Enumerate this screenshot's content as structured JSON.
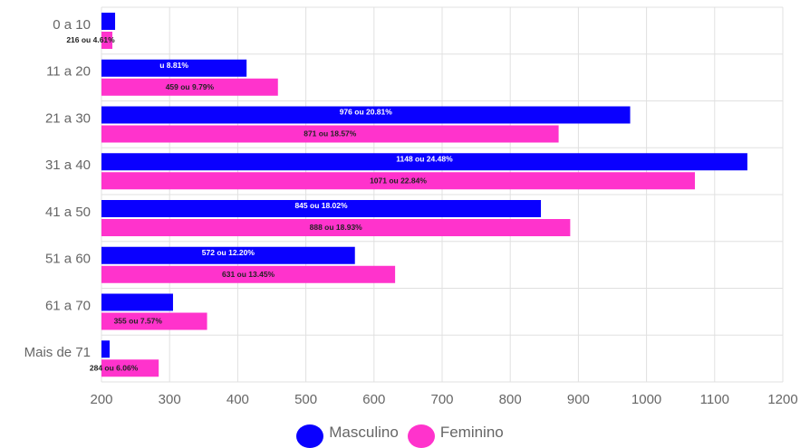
{
  "chart_data": {
    "type": "bar",
    "orientation": "horizontal",
    "categories": [
      "0 a 10",
      "11 a 20",
      "21 a 30",
      "31 a 40",
      "41 a 50",
      "51 a 60",
      "61 a 70",
      "Mais de 71"
    ],
    "series": [
      {
        "name": "Masculino",
        "color": "#0a00ff",
        "values": [
          220,
          413,
          976,
          1148,
          845,
          572,
          305,
          212
        ],
        "labels": [
          "",
          "u 8.81%",
          "976 ou 20.81%",
          "1148 ou 24.48%",
          "845 ou 18.02%",
          "572 ou 12.20%",
          "",
          ""
        ]
      },
      {
        "name": "Feminino",
        "color": "#ff33cc",
        "values": [
          216,
          459,
          871,
          1071,
          888,
          631,
          355,
          284
        ],
        "labels": [
          "216 ou 4.61%",
          "459 ou 9.79%",
          "871 ou 18.57%",
          "1071 ou 22.84%",
          "888 ou 18.93%",
          "631 ou 13.45%",
          "355 ou 7.57%",
          "284 ou 6.06%"
        ]
      }
    ],
    "xlim": [
      200,
      1200
    ],
    "xticks": [
      200,
      300,
      400,
      500,
      600,
      700,
      800,
      900,
      1000,
      1100,
      1200
    ],
    "grid": true,
    "legend_position": "bottom"
  }
}
